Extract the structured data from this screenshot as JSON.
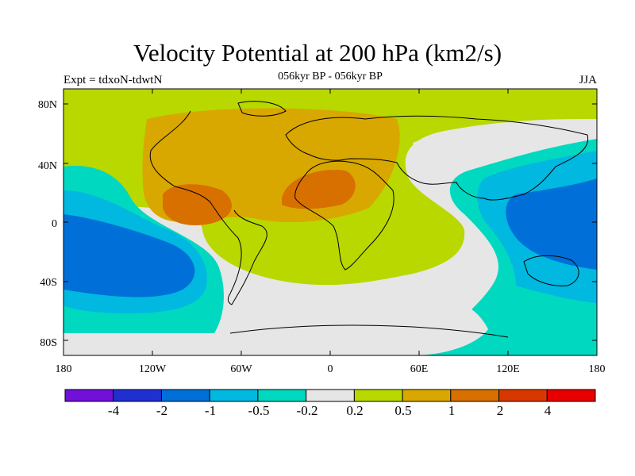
{
  "title": "Velocity Potential at 200 hPa (km2/s)",
  "experiment_label": "Expt = tdxoN-tdwtN",
  "period_label": "056kyr BP - 056kyr BP",
  "season_label": "JJA",
  "y_ticks": [
    "80N",
    "40N",
    "0",
    "40S",
    "80S"
  ],
  "x_ticks": [
    "180",
    "120W",
    "60W",
    "0",
    "60E",
    "120E",
    "180"
  ],
  "colorbar": {
    "colors": [
      "#7010d8",
      "#2030d0",
      "#0070d8",
      "#00b8e0",
      "#00d8c0",
      "#e6e6e6",
      "#b8d800",
      "#d8a800",
      "#d87000",
      "#d83800",
      "#e80000"
    ],
    "labels": [
      "-4",
      "-2",
      "-1",
      "-0.5",
      "-0.2",
      "0.2",
      "0.5",
      "1",
      "2",
      "4"
    ]
  },
  "map_fill_colors": {
    "light_gray": "#e6e6e6",
    "yellow_green": "#b8d800",
    "gold": "#d8a800",
    "orange": "#d87000",
    "teal": "#00d8c0",
    "cyan": "#00b8e0",
    "blue": "#0070d8"
  }
}
